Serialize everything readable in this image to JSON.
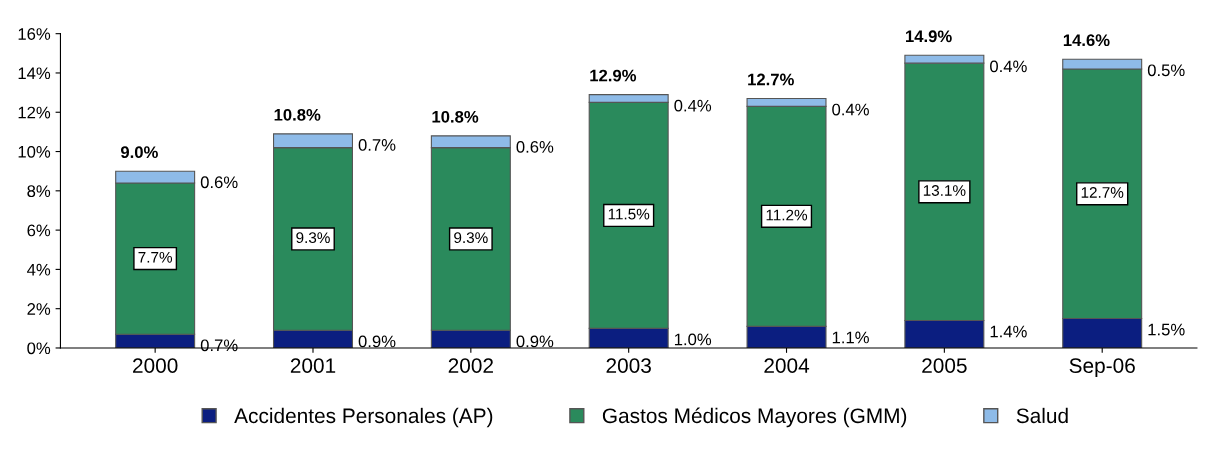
{
  "chart_data": {
    "type": "bar",
    "stacked": true,
    "categories": [
      "2000",
      "2001",
      "2002",
      "2003",
      "2004",
      "2005",
      "Sep-06"
    ],
    "series": [
      {
        "name": "Accidentes Personales (AP)",
        "color": "#0b1e80",
        "values": [
          0.7,
          0.9,
          0.9,
          1.0,
          1.1,
          1.4,
          1.5
        ]
      },
      {
        "name": "Gastos Médicos Mayores (GMM)",
        "color": "#2a8a5c",
        "values": [
          7.7,
          9.3,
          9.3,
          11.5,
          11.2,
          13.1,
          12.7
        ],
        "value_labels": [
          "7.7%",
          "9.3%",
          "9.3%",
          "11.5%",
          "11.2%",
          "13.1%",
          "12.7%"
        ]
      },
      {
        "name": "Salud",
        "color": "#8ebbe8",
        "values": [
          0.6,
          0.7,
          0.6,
          0.4,
          0.4,
          0.4,
          0.5
        ]
      }
    ],
    "annotations": [
      {
        "text": "0.7%",
        "x": "2000",
        "y": 0.7
      },
      {
        "text": "0.9%",
        "x": "2001",
        "y": 0.9
      },
      {
        "text": "0.9%",
        "x": "2002",
        "y": 0.9
      },
      {
        "text": "1.0%",
        "x": "2003",
        "y": 1.0
      },
      {
        "text": "1.1%",
        "x": "2004",
        "y": 1.1
      },
      {
        "text": "1.4%",
        "x": "2005",
        "y": 1.4
      },
      {
        "text": "1.5%",
        "x": "Sep-06",
        "y": 1.5
      },
      {
        "text": "0.6%",
        "x": "2000",
        "y": 9.0
      },
      {
        "text": "0.7%",
        "x": "2001",
        "y": 10.9
      },
      {
        "text": "0.6%",
        "x": "2002",
        "y": 10.8
      },
      {
        "text": "0.4%",
        "x": "2003",
        "y": 12.9
      },
      {
        "text": "0.4%",
        "x": "2004",
        "y": 12.7
      },
      {
        "text": "0.4%",
        "x": "2005",
        "y": 14.9
      },
      {
        "text": "0.5%",
        "x": "Sep-06",
        "y": 14.7
      }
    ],
    "totals": [
      "9.0%",
      "10.8%",
      "10.8%",
      "12.9%",
      "12.7%",
      "14.9%",
      "14.6%"
    ],
    "ylim": [
      0,
      16
    ],
    "yticks": [
      {
        "value": 0,
        "label": "0%"
      },
      {
        "value": 2,
        "label": "2%"
      },
      {
        "value": 4,
        "label": "4%"
      },
      {
        "value": 6,
        "label": "6%"
      },
      {
        "value": 8,
        "label": "8%"
      },
      {
        "value": 10,
        "label": "10%"
      },
      {
        "value": 12,
        "label": "12%"
      },
      {
        "value": 14,
        "label": "14%"
      },
      {
        "value": 16,
        "label": "16%"
      }
    ],
    "grid": false,
    "legend": "bottom"
  }
}
